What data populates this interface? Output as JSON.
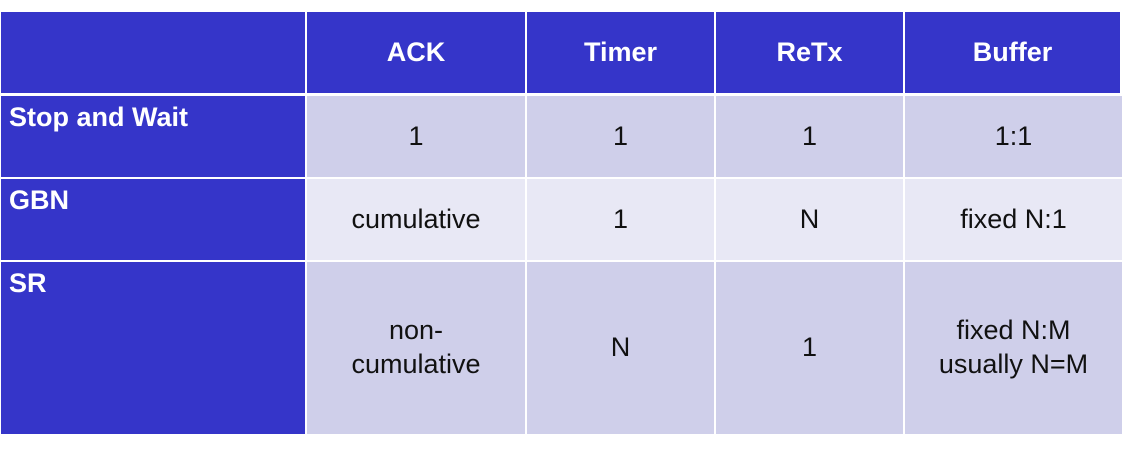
{
  "table": {
    "columns": [
      "",
      "ACK",
      "Timer",
      "ReTx",
      "Buffer"
    ],
    "rows": [
      {
        "label": "Stop and Wait",
        "ack": [
          "1"
        ],
        "timer": "1",
        "retx": "1",
        "buffer": [
          "1:1"
        ]
      },
      {
        "label": "GBN",
        "ack": [
          "cumulative"
        ],
        "timer": "1",
        "retx": "N",
        "buffer": [
          "fixed N:1"
        ]
      },
      {
        "label": "SR",
        "ack": [
          "non-",
          "cumulative"
        ],
        "timer": "N",
        "retx": "1",
        "buffer": [
          "fixed N:M",
          "usually N=M"
        ]
      }
    ]
  },
  "colors": {
    "header_bg": "#3535c9",
    "row_odd_bg": "#cfcfea",
    "row_even_bg": "#e8e8f5"
  }
}
